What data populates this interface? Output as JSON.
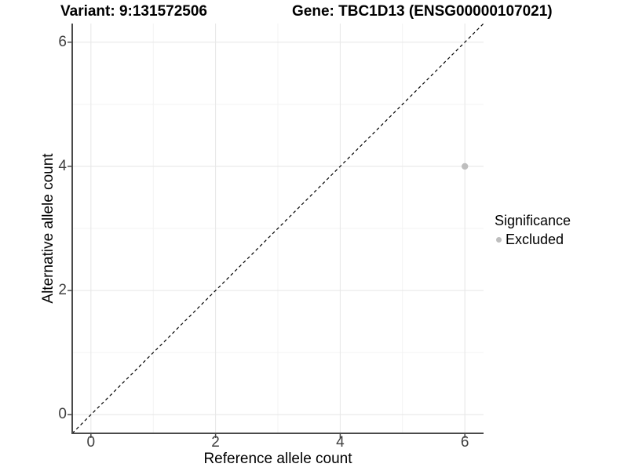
{
  "titles": {
    "variant": "Variant: 9:131572506",
    "gene": "Gene: TBC1D13 (ENSG00000107021)"
  },
  "chart_data": {
    "type": "scatter",
    "title_variant": "Variant: 9:131572506",
    "title_gene": "Gene: TBC1D13 (ENSG00000107021)",
    "xlabel": "Reference allele count",
    "ylabel": "Alternative allele count",
    "xlim": [
      -0.3,
      6.3
    ],
    "ylim": [
      -0.3,
      6.3
    ],
    "x_ticks": [
      0,
      2,
      4,
      6
    ],
    "y_ticks": [
      0,
      2,
      4,
      6
    ],
    "x_minor_ticks": [
      1,
      3,
      5
    ],
    "y_minor_ticks": [
      1,
      3,
      5
    ],
    "grid": true,
    "points": [
      {
        "x": 6,
        "y": 4,
        "series": "Excluded"
      }
    ],
    "identity_line": {
      "slope": 1,
      "intercept": 0,
      "style": "dashed",
      "color": "#000000"
    },
    "legend": {
      "position": "right",
      "title": "Significance",
      "entries": [
        {
          "label": "Excluded",
          "color": "#bebebe"
        }
      ]
    }
  },
  "colors": {
    "point": "#bebebe",
    "grid_major": "#e8e8e8",
    "grid_minor": "#f3f3f3",
    "axis_line": "#4a4a4a",
    "tick_label": "#404040",
    "diagonal": "#000000",
    "background": "#ffffff"
  }
}
